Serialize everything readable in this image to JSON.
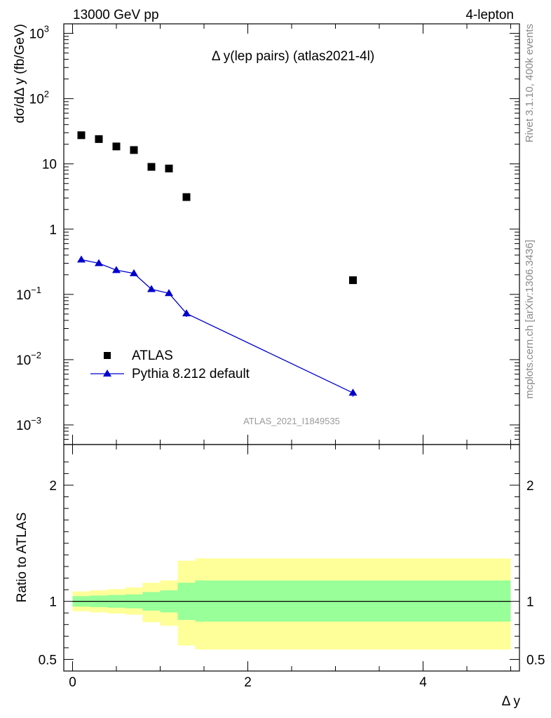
{
  "header": {
    "left": "13000 GeV pp",
    "right": "4-lepton"
  },
  "side_text": {
    "rivet": "Rivet 3.1.10,  400k events",
    "mcplots": "mcplots.cern.ch [arXiv:1306.3436]"
  },
  "chart_data": {
    "type": "scatter",
    "title": "Δ y(lep pairs) (atlas2021-4l)",
    "xlabel": "Δ y",
    "ylabel": "dσ/dΔ y (fb/GeV)",
    "watermark": "ATLAS_2021_I1849535",
    "xlim": [
      -0.1,
      5.1
    ],
    "ylim": [
      0.0005,
      1400
    ],
    "yscale": "log",
    "x_ticks": [
      0,
      2,
      4
    ],
    "x_tick_labels": [
      "0",
      "2",
      "4"
    ],
    "y_ticks": [
      0.001,
      0.01,
      0.1,
      1,
      10,
      100,
      1000
    ],
    "y_tick_labels": [
      {
        "base": "10",
        "exp": "−3"
      },
      {
        "base": "10",
        "exp": "−2"
      },
      {
        "base": "10",
        "exp": "−1"
      },
      {
        "base": "1",
        "exp": ""
      },
      {
        "base": "10",
        "exp": ""
      },
      {
        "base": "10",
        "exp": "2"
      },
      {
        "base": "10",
        "exp": "3"
      }
    ],
    "series": [
      {
        "name": "ATLAS",
        "marker": "square",
        "color": "#000000",
        "x": [
          0.1,
          0.3,
          0.5,
          0.7,
          0.9,
          1.1,
          1.3,
          3.2
        ],
        "y": [
          27.5,
          24.0,
          18.5,
          16.3,
          9.0,
          8.5,
          3.1,
          0.165
        ]
      },
      {
        "name": "Pythia 8.212 default",
        "marker": "triangle",
        "color": "#0000cc",
        "x": [
          0.1,
          0.3,
          0.5,
          0.7,
          0.9,
          1.1,
          1.3,
          3.2
        ],
        "y": [
          0.34,
          0.3,
          0.235,
          0.21,
          0.12,
          0.104,
          0.051,
          0.0031
        ],
        "yerr": [
          0.012,
          0.011,
          0.01,
          0.009,
          0.007,
          0.006,
          0.006,
          0.0004
        ]
      }
    ],
    "ratio": {
      "ylabel": "Ratio to ATLAS",
      "ylim": [
        0.4,
        2.35
      ],
      "y_ticks": [
        0.5,
        1,
        2
      ],
      "y_tick_labels": [
        "0.5",
        "1",
        "2"
      ],
      "bins": [
        {
          "lo": 0.0,
          "hi": 0.2,
          "stat_lo": 0.955,
          "stat_hi": 1.045,
          "tot_lo": 0.915,
          "tot_hi": 1.085
        },
        {
          "lo": 0.2,
          "hi": 0.4,
          "stat_lo": 0.95,
          "stat_hi": 1.05,
          "tot_lo": 0.905,
          "tot_hi": 1.095
        },
        {
          "lo": 0.4,
          "hi": 0.6,
          "stat_lo": 0.945,
          "stat_hi": 1.055,
          "tot_lo": 0.895,
          "tot_hi": 1.105
        },
        {
          "lo": 0.6,
          "hi": 0.8,
          "stat_lo": 0.94,
          "stat_hi": 1.06,
          "tot_lo": 0.885,
          "tot_hi": 1.12
        },
        {
          "lo": 0.8,
          "hi": 1.0,
          "stat_lo": 0.92,
          "stat_hi": 1.08,
          "tot_lo": 0.82,
          "tot_hi": 1.16
        },
        {
          "lo": 1.0,
          "hi": 1.2,
          "stat_lo": 0.905,
          "stat_hi": 1.095,
          "tot_lo": 0.79,
          "tot_hi": 1.18
        },
        {
          "lo": 1.2,
          "hi": 1.4,
          "stat_lo": 0.84,
          "stat_hi": 1.16,
          "tot_lo": 0.62,
          "tot_hi": 1.35
        },
        {
          "lo": 1.4,
          "hi": 5.0,
          "stat_lo": 0.825,
          "stat_hi": 1.18,
          "tot_lo": 0.585,
          "tot_hi": 1.37
        }
      ]
    },
    "colors": {
      "band_total": "#ffff99",
      "band_stat": "#99ff99",
      "data": "#000000",
      "mc": "#0000cc"
    }
  }
}
